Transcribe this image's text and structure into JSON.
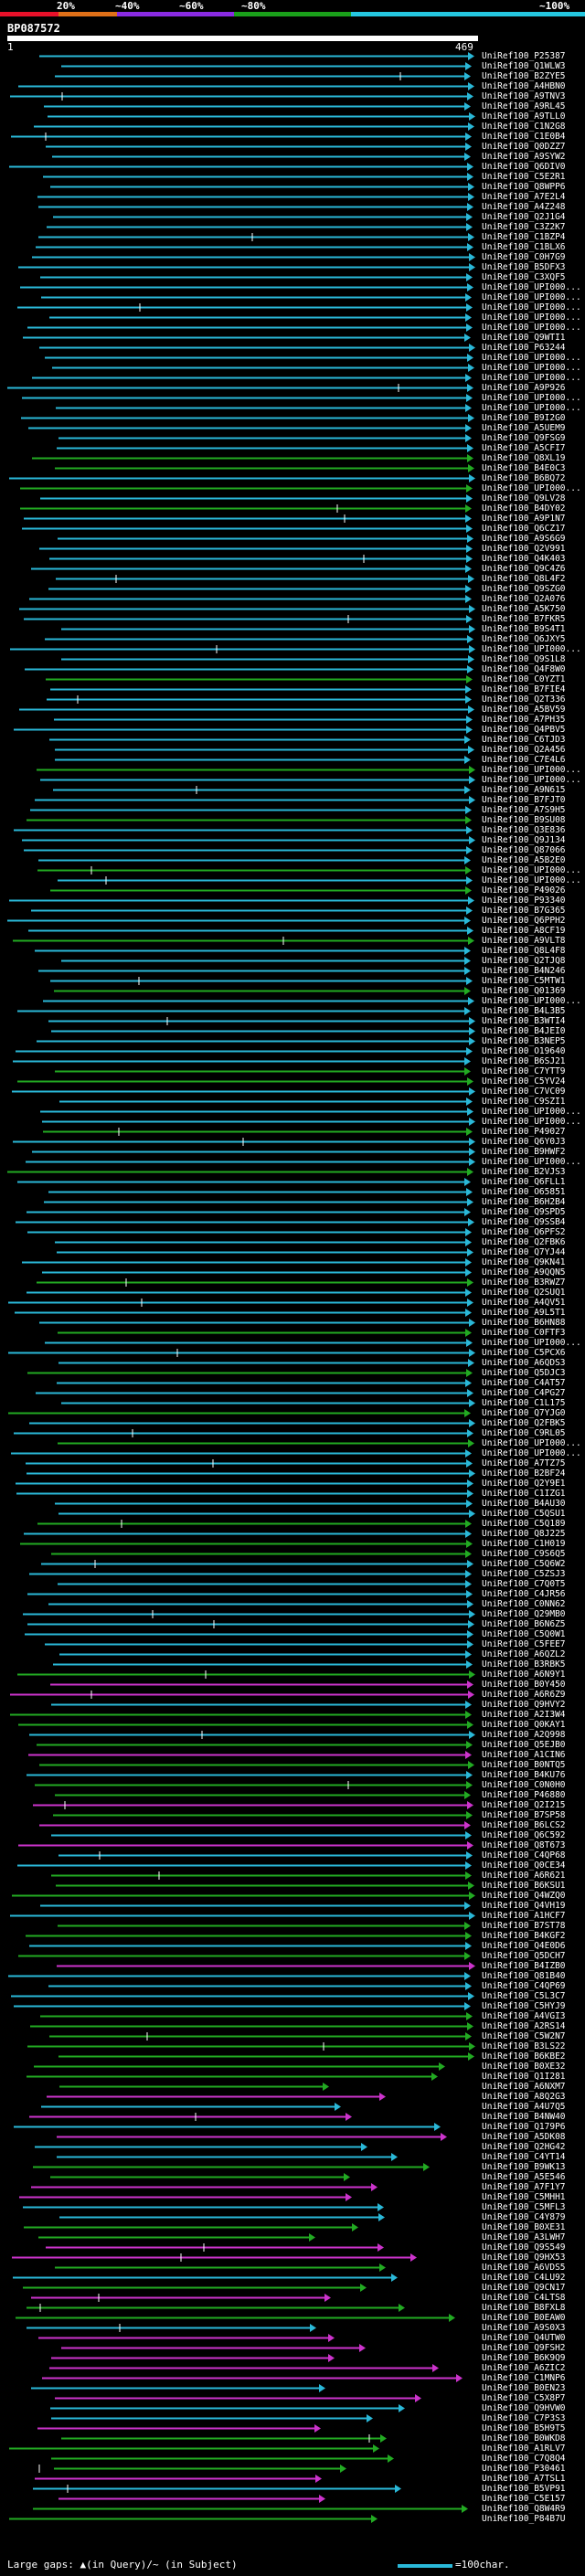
{
  "scale": {
    "labels": [
      "20%",
      "~40%",
      "~60%",
      "~80%",
      "~100%"
    ],
    "band_colors": [
      "#e8112a",
      "#8a2be2",
      "#1aa01a",
      "#1aa01a",
      "#25c7e0"
    ]
  },
  "query": {
    "id": "BP087572",
    "start": "1",
    "end": "469"
  },
  "colors": {
    "cyan": "#2ab8d8",
    "green": "#22aa22",
    "magenta": "#cc33cc",
    "white": "#ffffff"
  },
  "hits": [
    "UniRef100_P25387",
    "UniRef100_Q1WLW3",
    "UniRef100_B2ZYE5",
    "UniRef100_A4HBN0",
    "UniRef100_A9TNV3",
    "UniRef100_A9RL45",
    "UniRef100_A9TLL0",
    "UniRef100_C1N2G8",
    "UniRef100_C1E0B4",
    "UniRef100_Q0DZZ7",
    "UniRef100_A9SYW2",
    "UniRef100_Q6DIV0",
    "UniRef100_C5E2R1",
    "UniRef100_Q8WPP6",
    "UniRef100_A7E2L4",
    "UniRef100_A4Z248",
    "UniRef100_Q2J1G4",
    "UniRef100_C3Z2K7",
    "UniRef100_C1BZP4",
    "UniRef100_C1BLX6",
    "UniRef100_C0H7G9",
    "UniRef100_B5DFX3",
    "UniRef100_C3XQF5",
    "UniRef100_UPI000...",
    "UniRef100_UPI000...",
    "UniRef100_UPI000...",
    "UniRef100_UPI000...",
    "UniRef100_UPI000...",
    "UniRef100_Q9WTI1",
    "UniRef100_P63244",
    "UniRef100_UPI000...",
    "UniRef100_UPI000...",
    "UniRef100_UPI000...",
    "UniRef100_A9P926",
    "UniRef100_UPI000...",
    "UniRef100_UPI000...",
    "UniRef100_B9I2G0",
    "UniRef100_A5UEM9",
    "UniRef100_Q9FSG9",
    "UniRef100_A5CFI7",
    "UniRef100_Q8XL19",
    "UniRef100_B4E0C3",
    "UniRef100_B6BQ72",
    "UniRef100_UPI000...",
    "UniRef100_Q9LV28",
    "UniRef100_B4DY02",
    "UniRef100_A9P1N7",
    "UniRef100_Q6CZ17",
    "UniRef100_A9S6G9",
    "UniRef100_Q2V991",
    "UniRef100_Q4K403",
    "UniRef100_Q9C4Z6",
    "UniRef100_Q8L4F2",
    "UniRef100_Q9SZG0",
    "UniRef100_Q2A076",
    "UniRef100_A5K750",
    "UniRef100_B7FKR5",
    "UniRef100_B9S4T1",
    "UniRef100_Q6JXY5",
    "UniRef100_UPI000...",
    "UniRef100_Q9S1L8",
    "UniRef100_Q4F8W0",
    "UniRef100_C0YZT1",
    "UniRef100_B7FIE4",
    "UniRef100_Q2T336",
    "UniRef100_A5BV59",
    "UniRef100_A7PH35",
    "UniRef100_Q4PBV5",
    "UniRef100_C6TJD3",
    "UniRef100_Q2A456",
    "UniRef100_C7E4L6",
    "UniRef100_UPI000...",
    "UniRef100_UPI000...",
    "UniRef100_A9N615",
    "UniRef100_B7FJT0",
    "UniRef100_A7S9H5",
    "UniRef100_B9SU08",
    "UniRef100_Q3E836",
    "UniRef100_Q9J134",
    "UniRef100_Q87066",
    "UniRef100_A5B2E0",
    "UniRef100_UPI000...",
    "UniRef100_UPI000...",
    "UniRef100_P49026",
    "UniRef100_P93340",
    "UniRef100_B7G365",
    "UniRef100_Q6PPH2",
    "UniRef100_A8CF19",
    "UniRef100_A9VLT8",
    "UniRef100_Q8L4F8",
    "UniRef100_Q2TJQ8",
    "UniRef100_B4N246",
    "UniRef100_C5MTW1",
    "UniRef100_Q01369",
    "UniRef100_UPI000...",
    "UniRef100_B4L3B5",
    "UniRef100_B3WTI4",
    "UniRef100_B4JEI0",
    "UniRef100_B3NEP5",
    "UniRef100_O19640",
    "UniRef100_B6SJ21",
    "UniRef100_C7YTT9",
    "UniRef100_C5YV24",
    "UniRef100_C7VC09",
    "UniRef100_C9SZI1",
    "UniRef100_UPI000...",
    "UniRef100_UPI000...",
    "UniRef100_P49027",
    "UniRef100_Q6Y0J3",
    "UniRef100_B9HWF2",
    "UniRef100_UPI000...",
    "UniRef100_B2VJS3",
    "UniRef100_Q6FLL1",
    "UniRef100_O65851",
    "UniRef100_B6H2B4",
    "UniRef100_Q9SPD5",
    "UniRef100_Q9SSB4",
    "UniRef100_Q6PFS2",
    "UniRef100_Q2FBK6",
    "UniRef100_Q7YJ44",
    "UniRef100_Q9KN41",
    "UniRef100_A9QQN5",
    "UniRef100_B3RWZ7",
    "UniRef100_Q2SUQ1",
    "UniRef100_A4QV51",
    "UniRef100_A9L5T1",
    "UniRef100_B6HN88",
    "UniRef100_C0FTF3",
    "UniRef100_UPI000...",
    "UniRef100_C5PCX6",
    "UniRef100_A6QDS3",
    "UniRef100_Q5DJC3",
    "UniRef100_C4AT57",
    "UniRef100_C4PG27",
    "UniRef100_C1L175",
    "UniRef100_Q7YJG0",
    "UniRef100_Q2FBK5",
    "UniRef100_C9RL05",
    "UniRef100_UPI000...",
    "UniRef100_UPI000...",
    "UniRef100_A7TZ75",
    "UniRef100_B2BF24",
    "UniRef100_Q2Y9E1",
    "UniRef100_C1IZG1",
    "UniRef100_B4AU30",
    "UniRef100_C5QSU1",
    "UniRef100_C5Q189",
    "UniRef100_Q8J225",
    "UniRef100_C1H019",
    "UniRef100_C9S6Q5",
    "UniRef100_C5Q6W2",
    "UniRef100_C5ZSJ3",
    "UniRef100_C7Q0T5",
    "UniRef100_C4JR56",
    "UniRef100_C0NN62",
    "UniRef100_Q29MB0",
    "UniRef100_B6N6Z5",
    "UniRef100_C5Q0W1",
    "UniRef100_C5FEE7",
    "UniRef100_A6QZL2",
    "UniRef100_B3RBK5",
    "UniRef100_A6N9Y1",
    "UniRef100_B0Y450",
    "UniRef100_A6R6Z9",
    "UniRef100_Q9HVY2",
    "UniRef100_A2I3W4",
    "UniRef100_Q0KAY1",
    "UniRef100_A2Q998",
    "UniRef100_Q5EJB0",
    "UniRef100_A1CIN6",
    "UniRef100_B0NTQ5",
    "UniRef100_B4KU76",
    "UniRef100_C0N0H0",
    "UniRef100_P46880",
    "UniRef100_Q2I215",
    "UniRef100_B7SP58",
    "UniRef100_B6LCS2",
    "UniRef100_Q6C592",
    "UniRef100_Q8T673",
    "UniRef100_C4QP68",
    "UniRef100_Q0CE34",
    "UniRef100_A6R621",
    "UniRef100_B6KSU1",
    "UniRef100_Q4WZQ0",
    "UniRef100_Q4VH19",
    "UniRef100_A1HCF7",
    "UniRef100_B7ST78",
    "UniRef100_B4KGF2",
    "UniRef100_Q4E0D6",
    "UniRef100_Q5DCH7",
    "UniRef100_B4IZB0",
    "UniRef100_Q81B40",
    "UniRef100_C4QP69",
    "UniRef100_C5L3C7",
    "UniRef100_C5HYJ9",
    "UniRef100_A4VGI3",
    "UniRef100_A2RS14",
    "UniRef100_C5W2N7",
    "UniRef100_B3LS22",
    "UniRef100_B6KBE2",
    "UniRef100_B0XE32",
    "UniRef100_Q1I281",
    "UniRef100_A6NXM7",
    "UniRef100_A8Q2G3",
    "UniRef100_A4U7Q5",
    "UniRef100_B4NW40",
    "UniRef100_Q179P6",
    "UniRef100_A5DK08",
    "UniRef100_Q2HG42",
    "UniRef100_C4YT14",
    "UniRef100_B9WK13",
    "UniRef100_A5E546",
    "UniRef100_A7F1Y7",
    "UniRef100_C5MHH1",
    "UniRef100_C5MFL3",
    "UniRef100_C4Y879",
    "UniRef100_B0XE31",
    "UniRef100_A3LWH7",
    "UniRef100_Q9S549",
    "UniRef100_Q9HX53",
    "UniRef100_A6VDS5",
    "UniRef100_C4LU92",
    "UniRef100_Q9CN17",
    "UniRef100_C4LTS8",
    "UniRef100_B8FXL8",
    "UniRef100_B0EAW0",
    "UniRef100_A9S0X3",
    "UniRef100_Q4UTW0",
    "UniRef100_Q9FSH2",
    "UniRef100_B6K9Q9",
    "UniRef100_A6ZIC2",
    "UniRef100_C1MNP6",
    "UniRef100_B0EN23",
    "UniRef100_C5X8P7",
    "UniRef100_Q9HVW0",
    "UniRef100_C7P3S3",
    "UniRef100_B5H9T5",
    "UniRef100_B0WKD8",
    "UniRef100_A1RLV7",
    "UniRef100_C7Q8Q4",
    "UniRef100_P30461",
    "UniRef100_A7TSL1",
    "UniRef100_B5VP91",
    "UniRef100_C5E157",
    "UniRef100_Q8W4R9",
    "UniRef100_P84B7U"
  ],
  "legend": {
    "text": "Large gaps: ▲(in Query)/~ (in Subject)",
    "scale_label": "=100char."
  }
}
